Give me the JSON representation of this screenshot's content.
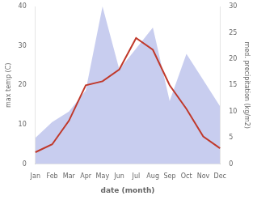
{
  "chart_data": {
    "type": "line",
    "xlabel": "date (month)",
    "ylabel": "max temp (C)",
    "y2label": "med. precipitation (kg/m2)",
    "categories": [
      "Jan",
      "Feb",
      "Mar",
      "Apr",
      "May",
      "Jun",
      "Jul",
      "Aug",
      "Sep",
      "Oct",
      "Nov",
      "Dec"
    ],
    "series": [
      {
        "type": "area",
        "axis": "y2",
        "color": "#b0b8e8",
        "values": [
          5,
          8,
          10,
          14,
          30,
          18,
          22,
          26,
          12,
          21,
          16,
          11
        ]
      },
      {
        "type": "line",
        "color": "#c0392b",
        "values": [
          3,
          5,
          11,
          20,
          21,
          24,
          32,
          29,
          20,
          14,
          7,
          4
        ]
      }
    ],
    "ylim": [
      0,
      40
    ],
    "yticks": [
      0,
      10,
      20,
      30,
      40
    ],
    "y2lim": [
      0,
      30
    ],
    "y2ticks": [
      0,
      5,
      10,
      15,
      20,
      25,
      30
    ],
    "grid": false
  }
}
